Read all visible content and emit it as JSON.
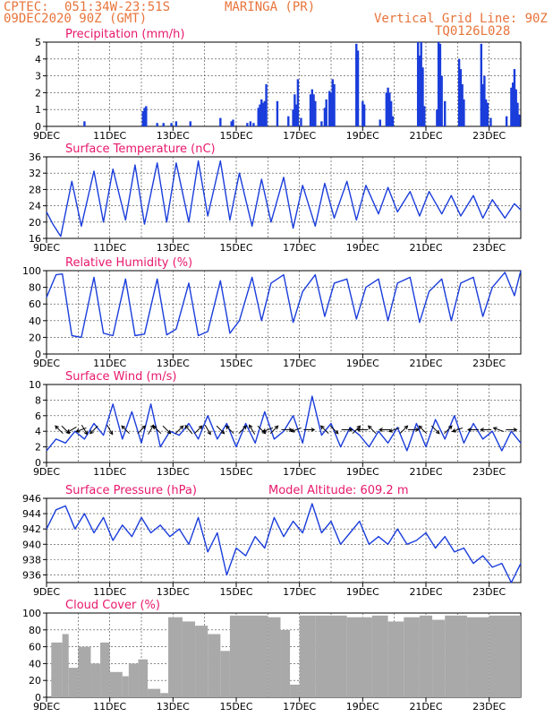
{
  "header": {
    "source": "CPTEC:",
    "location": "051:34W-23:51S",
    "station": "MARINGA (PR)",
    "run": "09DEC2020 90Z (GMT)",
    "grid_note": "Vertical Grid Line: 90Z",
    "code": "TQ0126L028"
  },
  "colors": {
    "header": "#e8743b",
    "panel_title": "#e8186d",
    "series": "#1a3ddb",
    "cloud": "#a9a9a9",
    "axis": "#000000"
  },
  "x_axis": {
    "tick_labels": [
      "9DEC",
      "11DEC",
      "13DEC",
      "15DEC",
      "17DEC",
      "19DEC",
      "21DEC",
      "23DEC"
    ],
    "day_range": [
      9,
      24
    ]
  },
  "chart_data": [
    {
      "id": "precip",
      "type": "bar",
      "title": "Precipitation (mm/h)",
      "ylim": [
        0,
        5
      ],
      "yticks": [
        0,
        1,
        2,
        3,
        4,
        5
      ],
      "bars": [
        [
          10.2,
          0.3
        ],
        [
          12.05,
          0.9
        ],
        [
          12.1,
          1.1
        ],
        [
          12.15,
          1.2
        ],
        [
          12.5,
          0.2
        ],
        [
          12.7,
          0.2
        ],
        [
          12.95,
          0.2
        ],
        [
          13.1,
          0.3
        ],
        [
          13.55,
          0.3
        ],
        [
          14.5,
          0.5
        ],
        [
          14.85,
          0.3
        ],
        [
          14.9,
          0.4
        ],
        [
          15.35,
          0.2
        ],
        [
          15.45,
          0.3
        ],
        [
          15.55,
          0.2
        ],
        [
          15.7,
          1.1
        ],
        [
          15.75,
          1.3
        ],
        [
          15.8,
          1.6
        ],
        [
          15.85,
          1.4
        ],
        [
          15.9,
          1.5
        ],
        [
          15.95,
          2.5
        ],
        [
          16.3,
          1.5
        ],
        [
          16.65,
          0.6
        ],
        [
          16.8,
          1.0
        ],
        [
          16.85,
          1.9
        ],
        [
          16.9,
          1.3
        ],
        [
          16.95,
          2.8
        ],
        [
          17.05,
          0.5
        ],
        [
          17.35,
          1.9
        ],
        [
          17.4,
          2.2
        ],
        [
          17.45,
          1.9
        ],
        [
          17.5,
          1.5
        ],
        [
          17.7,
          0.3
        ],
        [
          17.8,
          1.1
        ],
        [
          17.85,
          1.6
        ],
        [
          17.95,
          2.1
        ],
        [
          18.0,
          2.0
        ],
        [
          18.05,
          2.8
        ],
        [
          18.1,
          2.5
        ],
        [
          18.8,
          4.9
        ],
        [
          18.85,
          4.5
        ],
        [
          19.0,
          1.5
        ],
        [
          19.05,
          1.3
        ],
        [
          19.55,
          0.4
        ],
        [
          19.75,
          2.0
        ],
        [
          19.8,
          2.3
        ],
        [
          19.85,
          2.0
        ],
        [
          19.9,
          1.5
        ],
        [
          19.95,
          0.6
        ],
        [
          20.75,
          5.0
        ],
        [
          20.8,
          4.2
        ],
        [
          20.85,
          5.0
        ],
        [
          20.9,
          3.5
        ],
        [
          20.95,
          1.2
        ],
        [
          21.35,
          1.0
        ],
        [
          21.4,
          5.0
        ],
        [
          21.45,
          4.9
        ],
        [
          21.5,
          3.0
        ],
        [
          21.6,
          1.5
        ],
        [
          22.05,
          4.0
        ],
        [
          22.1,
          3.4
        ],
        [
          22.15,
          2.5
        ],
        [
          22.2,
          1.6
        ],
        [
          22.75,
          4.9
        ],
        [
          22.8,
          2.5
        ],
        [
          22.85,
          3.0
        ],
        [
          22.9,
          1.6
        ],
        [
          22.95,
          1.4
        ],
        [
          23.05,
          0.5
        ],
        [
          23.55,
          0.6
        ],
        [
          23.7,
          2.3
        ],
        [
          23.75,
          2.6
        ],
        [
          23.8,
          3.4
        ],
        [
          23.85,
          2.2
        ],
        [
          23.9,
          1.4
        ],
        [
          23.95,
          0.7
        ]
      ]
    },
    {
      "id": "temp",
      "type": "line",
      "title": "Surface Temperature (nC)",
      "ylim": [
        16,
        36
      ],
      "yticks": [
        16,
        20,
        24,
        28,
        32,
        36
      ],
      "series": [
        {
          "x": [
            9.0,
            9.2,
            9.45,
            9.8,
            10.1,
            10.5,
            10.8,
            11.1,
            11.5,
            11.8,
            12.1,
            12.5,
            12.8,
            13.1,
            13.5,
            13.8,
            14.1,
            14.5,
            14.8,
            15.1,
            15.5,
            15.8,
            16.1,
            16.5,
            16.8,
            17.1,
            17.5,
            17.8,
            18.1,
            18.5,
            18.8,
            19.1,
            19.5,
            19.8,
            20.1,
            20.5,
            20.8,
            21.1,
            21.5,
            21.8,
            22.1,
            22.5,
            22.8,
            23.1,
            23.5,
            23.8,
            24.0
          ],
          "y": [
            22.5,
            19.5,
            16.5,
            30.0,
            19.0,
            32.5,
            20.0,
            33.0,
            20.5,
            34.0,
            19.5,
            34.5,
            20.0,
            34.5,
            20.0,
            35.0,
            21.5,
            35.0,
            20.5,
            32.0,
            19.0,
            30.5,
            20.0,
            31.0,
            18.5,
            29.0,
            19.0,
            29.5,
            21.0,
            30.0,
            20.5,
            29.0,
            22.0,
            28.5,
            22.5,
            27.5,
            21.5,
            27.5,
            22.0,
            26.5,
            21.5,
            26.5,
            21.0,
            25.5,
            21.0,
            24.5,
            23.0
          ]
        }
      ]
    },
    {
      "id": "rh",
      "type": "line",
      "title": "Relative Humidity (%)",
      "ylim": [
        0,
        100
      ],
      "yticks": [
        0,
        20,
        40,
        60,
        80,
        100
      ],
      "series": [
        {
          "x": [
            9.0,
            9.3,
            9.5,
            9.8,
            10.1,
            10.5,
            10.8,
            11.1,
            11.5,
            11.8,
            12.1,
            12.5,
            12.8,
            13.1,
            13.5,
            13.8,
            14.1,
            14.5,
            14.8,
            15.1,
            15.5,
            15.8,
            16.1,
            16.5,
            16.8,
            17.1,
            17.5,
            17.8,
            18.1,
            18.5,
            18.8,
            19.1,
            19.5,
            19.8,
            20.1,
            20.5,
            20.8,
            21.1,
            21.5,
            21.8,
            22.1,
            22.5,
            22.8,
            23.1,
            23.5,
            23.8,
            24.0
          ],
          "y": [
            68,
            95,
            96,
            22,
            20,
            92,
            25,
            22,
            90,
            22,
            24,
            90,
            23,
            30,
            85,
            22,
            27,
            88,
            25,
            40,
            92,
            40,
            85,
            95,
            38,
            75,
            95,
            45,
            85,
            90,
            42,
            80,
            90,
            40,
            85,
            92,
            38,
            75,
            90,
            40,
            85,
            92,
            45,
            80,
            98,
            70,
            100
          ]
        }
      ]
    },
    {
      "id": "wind",
      "type": "line",
      "title": "Surface Wind (m/s)",
      "ylim": [
        0,
        10
      ],
      "yticks": [
        0,
        2,
        4,
        6,
        8,
        10
      ],
      "series": [
        {
          "x": [
            9.0,
            9.3,
            9.6,
            9.9,
            10.2,
            10.5,
            10.8,
            11.1,
            11.4,
            11.7,
            12.0,
            12.3,
            12.6,
            12.9,
            13.2,
            13.5,
            13.8,
            14.1,
            14.4,
            14.7,
            15.0,
            15.3,
            15.6,
            15.9,
            16.2,
            16.5,
            16.8,
            17.1,
            17.4,
            17.7,
            18.0,
            18.3,
            18.6,
            18.9,
            19.2,
            19.5,
            19.8,
            20.1,
            20.4,
            20.7,
            21.0,
            21.3,
            21.6,
            21.9,
            22.2,
            22.5,
            22.8,
            23.1,
            23.4,
            23.7,
            24.0
          ],
          "y": [
            1.5,
            3.0,
            2.5,
            4.0,
            3.0,
            5.0,
            3.5,
            7.5,
            3.0,
            6.5,
            2.5,
            7.5,
            2.0,
            4.0,
            3.5,
            5.0,
            3.0,
            6.0,
            3.0,
            5.0,
            2.0,
            5.0,
            2.5,
            6.5,
            3.0,
            4.0,
            6.0,
            2.5,
            8.5,
            3.5,
            5.0,
            2.0,
            4.5,
            3.5,
            2.0,
            4.0,
            2.5,
            4.5,
            1.5,
            5.0,
            2.0,
            5.5,
            3.0,
            6.0,
            2.5,
            5.0,
            3.0,
            4.0,
            1.5,
            4.0,
            2.5
          ]
        }
      ],
      "arrows": [
        [
          9.4,
          135
        ],
        [
          9.6,
          315
        ],
        [
          9.8,
          210
        ],
        [
          10.1,
          200
        ],
        [
          10.2,
          300
        ],
        [
          10.5,
          225
        ],
        [
          11.0,
          300
        ],
        [
          11.5,
          135
        ],
        [
          12.0,
          45
        ],
        [
          12.3,
          60
        ],
        [
          12.5,
          135
        ],
        [
          12.8,
          315
        ],
        [
          13.2,
          45
        ],
        [
          13.5,
          130
        ],
        [
          13.8,
          45
        ],
        [
          14.1,
          300
        ],
        [
          14.5,
          315
        ],
        [
          14.8,
          135
        ],
        [
          15.2,
          45
        ],
        [
          15.5,
          120
        ],
        [
          15.8,
          315
        ],
        [
          16.0,
          200
        ],
        [
          16.2,
          45
        ],
        [
          16.6,
          0
        ],
        [
          16.9,
          200
        ],
        [
          17.3,
          0
        ],
        [
          17.8,
          135
        ],
        [
          18.1,
          315
        ],
        [
          18.5,
          0
        ],
        [
          18.8,
          45
        ],
        [
          19.0,
          180
        ],
        [
          19.3,
          135
        ],
        [
          19.7,
          180
        ],
        [
          20.0,
          200
        ],
        [
          20.3,
          45
        ],
        [
          20.6,
          0
        ],
        [
          20.9,
          135
        ],
        [
          21.3,
          315
        ],
        [
          21.7,
          45
        ],
        [
          22.0,
          200
        ],
        [
          22.5,
          180
        ],
        [
          22.9,
          180
        ],
        [
          23.3,
          160
        ],
        [
          23.7,
          0
        ]
      ]
    },
    {
      "id": "pressure",
      "type": "line",
      "title": "Surface Pressure (hPa)",
      "annotation": "Model Altitude: 609.2 m",
      "ylim": [
        935,
        946
      ],
      "yticks": [
        936,
        938,
        940,
        942,
        944,
        946
      ],
      "series": [
        {
          "x": [
            9.0,
            9.3,
            9.6,
            9.9,
            10.2,
            10.5,
            10.8,
            11.1,
            11.4,
            11.7,
            12.0,
            12.3,
            12.6,
            12.9,
            13.2,
            13.5,
            13.8,
            14.1,
            14.4,
            14.7,
            15.0,
            15.3,
            15.6,
            15.9,
            16.2,
            16.5,
            16.8,
            17.1,
            17.4,
            17.7,
            18.0,
            18.3,
            18.6,
            18.9,
            19.2,
            19.5,
            19.8,
            20.1,
            20.4,
            20.7,
            21.0,
            21.3,
            21.6,
            21.9,
            22.2,
            22.5,
            22.8,
            23.1,
            23.4,
            23.7,
            24.0
          ],
          "y": [
            942.0,
            944.5,
            945.0,
            942.0,
            944.0,
            941.5,
            943.5,
            940.5,
            942.5,
            941.0,
            943.5,
            941.5,
            942.5,
            941.0,
            942.0,
            940.0,
            943.5,
            939.0,
            941.5,
            936.0,
            939.5,
            938.5,
            941.0,
            939.5,
            943.5,
            941.0,
            943.0,
            941.5,
            945.3,
            941.5,
            943.0,
            940.0,
            941.5,
            943.0,
            940.0,
            941.0,
            940.0,
            942.0,
            940.0,
            940.5,
            941.5,
            939.5,
            941.0,
            939.0,
            939.5,
            937.5,
            938.5,
            937.0,
            937.5,
            935.0,
            937.5
          ]
        }
      ]
    },
    {
      "id": "cloud",
      "type": "bar",
      "title": "Cloud Cover (%)",
      "ylim": [
        0,
        100
      ],
      "yticks": [
        0,
        20,
        40,
        60,
        80,
        100
      ],
      "segments": [
        [
          9.0,
          9.15,
          0
        ],
        [
          9.15,
          9.5,
          65
        ],
        [
          9.5,
          9.7,
          75
        ],
        [
          9.7,
          10.0,
          35
        ],
        [
          10.0,
          10.4,
          60
        ],
        [
          10.4,
          10.7,
          40
        ],
        [
          10.7,
          11.0,
          65
        ],
        [
          11.0,
          11.4,
          30
        ],
        [
          11.4,
          11.6,
          25
        ],
        [
          11.6,
          11.9,
          40
        ],
        [
          11.9,
          12.2,
          45
        ],
        [
          12.2,
          12.6,
          10
        ],
        [
          12.6,
          12.85,
          5
        ],
        [
          12.85,
          13.3,
          95
        ],
        [
          13.3,
          13.7,
          90
        ],
        [
          13.7,
          14.1,
          85
        ],
        [
          14.1,
          14.5,
          75
        ],
        [
          14.5,
          14.8,
          55
        ],
        [
          14.8,
          15.0,
          97
        ],
        [
          15.0,
          16.0,
          97
        ],
        [
          16.0,
          16.4,
          95
        ],
        [
          16.4,
          16.7,
          80
        ],
        [
          16.7,
          17.0,
          15
        ],
        [
          17.0,
          17.5,
          97
        ],
        [
          17.5,
          18.5,
          97
        ],
        [
          18.5,
          19.3,
          95
        ],
        [
          19.3,
          19.8,
          97
        ],
        [
          19.8,
          20.3,
          90
        ],
        [
          20.3,
          20.8,
          95
        ],
        [
          20.8,
          21.2,
          97
        ],
        [
          21.2,
          21.6,
          92
        ],
        [
          21.6,
          22.3,
          97
        ],
        [
          22.3,
          23.0,
          95
        ],
        [
          23.0,
          24.0,
          97
        ]
      ]
    }
  ]
}
